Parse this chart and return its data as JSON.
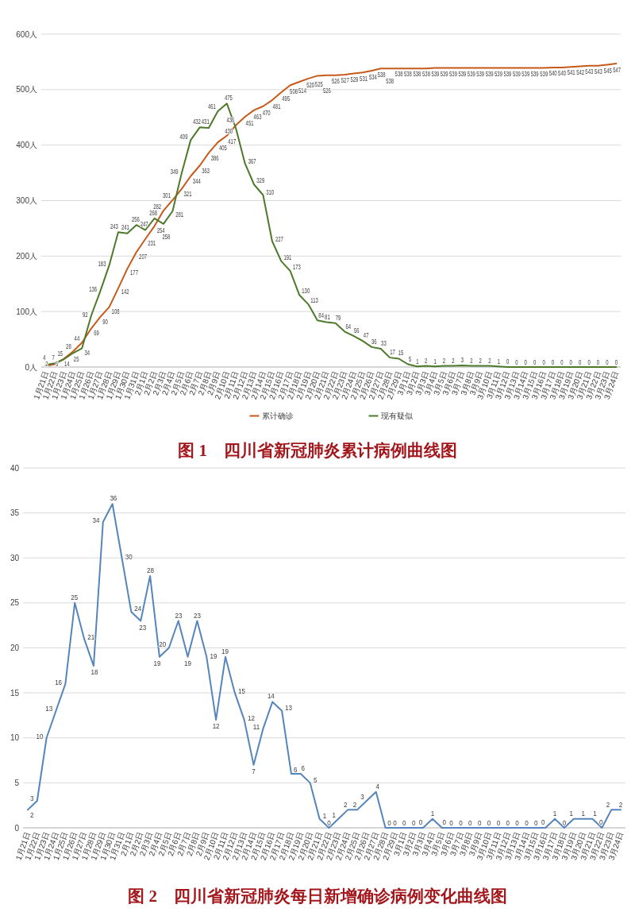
{
  "chart_data": [
    {
      "type": "line",
      "title": "图 1　四川省新冠肺炎累计病例曲线图",
      "categories": [
        "1月21日",
        "1月22日",
        "1月23日",
        "1月24日",
        "1月25日",
        "1月26日",
        "1月27日",
        "1月28日",
        "1月29日",
        "1月30日",
        "1月31日",
        "2月1日",
        "2月2日",
        "2月3日",
        "2月4日",
        "2月5日",
        "2月6日",
        "2月7日",
        "2月8日",
        "2月9日",
        "2月10日",
        "2月11日",
        "2月12日",
        "2月13日",
        "2月14日",
        "2月15日",
        "2月16日",
        "2月17日",
        "2月18日",
        "2月19日",
        "2月20日",
        "2月21日",
        "2月22日",
        "2月23日",
        "2月24日",
        "2月25日",
        "2月26日",
        "2月27日",
        "2月28日",
        "2月29日",
        "3月1日",
        "3月2日",
        "3月3日",
        "3月4日",
        "3月5日",
        "3月6日",
        "3月7日",
        "3月8日",
        "3月9日",
        "3月10日",
        "3月11日",
        "3月12日",
        "3月13日",
        "3月14日",
        "3月15日",
        "3月16日",
        "3月17日",
        "3月18日",
        "3月19日",
        "3月20日",
        "3月21日",
        "3月22日",
        "3月23日",
        "3月24日"
      ],
      "series": [
        {
          "name": "累计确诊",
          "color": "#c55a1b",
          "values": [
            2,
            5,
            15,
            28,
            44,
            69,
            90,
            108,
            142,
            177,
            207,
            231,
            254,
            282,
            301,
            321,
            344,
            363,
            386,
            405,
            417,
            436,
            451,
            463,
            470,
            481,
            495,
            508,
            514,
            520,
            525,
            526,
            526,
            527,
            529,
            531,
            534,
            538,
            538,
            538,
            538,
            538,
            538,
            539,
            539,
            539,
            539,
            539,
            539,
            539,
            539,
            539,
            539,
            539,
            539,
            539,
            540,
            540,
            541,
            542,
            543,
            543,
            545,
            547
          ]
        },
        {
          "name": "现有疑似",
          "color": "#4d7a2a",
          "values": [
            4,
            7,
            14,
            25,
            34,
            92,
            136,
            183,
            243,
            241,
            256,
            247,
            268,
            258,
            281,
            349,
            409,
            432,
            431,
            461,
            475,
            430,
            367,
            329,
            310,
            227,
            191,
            173,
            130,
            113,
            84,
            81,
            79,
            64,
            56,
            47,
            36,
            33,
            17,
            15,
            5,
            1,
            2,
            1,
            2,
            2,
            3,
            2,
            2,
            2,
            1,
            0,
            0,
            0,
            0,
            0,
            0,
            0,
            0,
            0,
            0,
            0,
            0,
            0
          ]
        }
      ],
      "ylim": [
        0,
        600
      ],
      "yticks": [
        {
          "value": 0,
          "label": "0人"
        },
        {
          "value": 100,
          "label": "100人"
        },
        {
          "value": 200,
          "label": "200人"
        },
        {
          "value": 300,
          "label": "300人"
        },
        {
          "value": 400,
          "label": "400人"
        },
        {
          "value": 500,
          "label": "500人"
        },
        {
          "value": 600,
          "label": "600人"
        }
      ],
      "grid": "y",
      "legend": "bottom",
      "data_labels": true
    },
    {
      "type": "line",
      "title": "图 2　四川省新冠肺炎每日新增确诊病例变化曲线图",
      "categories": [
        "1月21日",
        "1月22日",
        "1月23日",
        "1月24日",
        "1月25日",
        "1月26日",
        "1月27日",
        "1月28日",
        "1月29日",
        "1月30日",
        "1月31日",
        "2月1日",
        "2月2日",
        "2月3日",
        "2月4日",
        "2月5日",
        "2月6日",
        "2月7日",
        "2月8日",
        "2月9日",
        "2月10日",
        "2月11日",
        "2月12日",
        "2月13日",
        "2月14日",
        "2月15日",
        "2月16日",
        "2月17日",
        "2月18日",
        "2月19日",
        "2月20日",
        "2月21日",
        "2月22日",
        "2月23日",
        "2月24日",
        "2月25日",
        "2月26日",
        "2月27日",
        "2月28日",
        "2月29日",
        "3月1日",
        "3月2日",
        "3月3日",
        "3月4日",
        "3月5日",
        "3月6日",
        "3月7日",
        "3月8日",
        "3月9日",
        "3月10日",
        "3月11日",
        "3月12日",
        "3月13日",
        "3月14日",
        "3月15日",
        "3月16日",
        "3月17日",
        "3月18日",
        "3月19日",
        "3月20日",
        "3月21日",
        "3月22日",
        "3月23日",
        "3月24日"
      ],
      "series": [
        {
          "color": "#5585bb",
          "values": [
            2,
            3,
            10,
            13,
            16,
            25,
            21,
            18,
            34,
            36,
            30,
            24,
            23,
            28,
            19,
            20,
            23,
            19,
            23,
            19,
            12,
            19,
            15,
            12,
            7,
            11,
            14,
            13,
            6,
            6,
            5,
            1,
            0,
            1,
            2,
            2,
            3,
            4,
            0,
            0,
            0,
            0,
            0,
            1,
            0,
            0,
            0,
            0,
            0,
            0,
            0,
            0,
            0,
            0,
            0,
            0,
            1,
            0,
            1,
            1,
            1,
            0,
            2,
            2
          ]
        }
      ],
      "ylim": [
        0,
        40
      ],
      "yticks": [
        0,
        5,
        10,
        15,
        20,
        25,
        30,
        35,
        40
      ],
      "grid": "y",
      "data_labels": true
    }
  ]
}
